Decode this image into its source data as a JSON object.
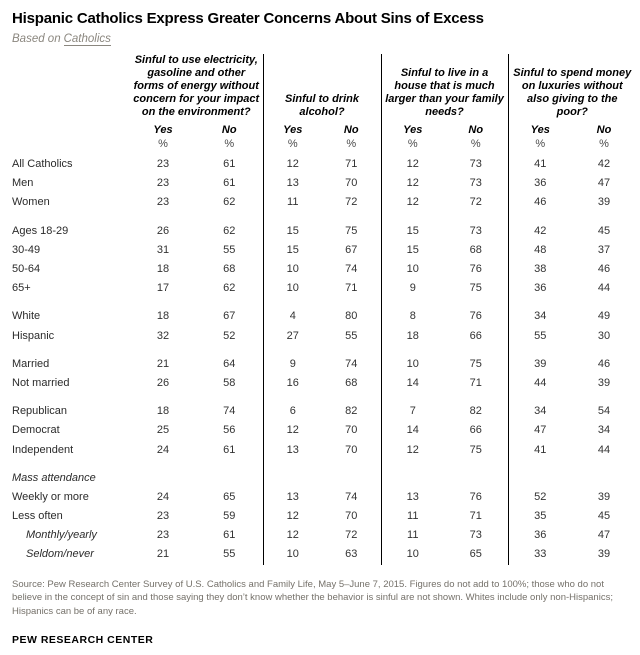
{
  "chart_data": {
    "type": "table",
    "title": "Hispanic Catholics Express Greater Concerns About Sins of Excess",
    "subtitle_prefix": "Based on",
    "subtitle_link": "Catholics",
    "columns": [
      "Yes",
      "No"
    ],
    "unit": "%",
    "column_groups": [
      {
        "question": "Sinful to use electricity, gasoline and other forms of energy without concern for your impact on the environment?"
      },
      {
        "question": "Sinful to drink alcohol?"
      },
      {
        "question": "Sinful to live in a house that is much larger than your family needs?"
      },
      {
        "question": "Sinful to spend money on luxuries without also giving to the poor?"
      }
    ],
    "rows": [
      {
        "label": "All Catholics",
        "values": [
          23,
          61,
          12,
          71,
          12,
          73,
          41,
          42
        ]
      },
      {
        "label": "Men",
        "values": [
          23,
          61,
          13,
          70,
          12,
          73,
          36,
          47
        ]
      },
      {
        "label": "Women",
        "values": [
          23,
          62,
          11,
          72,
          12,
          72,
          46,
          39
        ]
      },
      {
        "label": "Ages 18-29",
        "gap_before": true,
        "values": [
          26,
          62,
          15,
          75,
          15,
          73,
          42,
          45
        ]
      },
      {
        "label": "30-49",
        "values": [
          31,
          55,
          15,
          67,
          15,
          68,
          48,
          37
        ]
      },
      {
        "label": "50-64",
        "values": [
          18,
          68,
          10,
          74,
          10,
          76,
          38,
          46
        ]
      },
      {
        "label": "65+",
        "values": [
          17,
          62,
          10,
          71,
          9,
          75,
          36,
          44
        ]
      },
      {
        "label": "White",
        "gap_before": true,
        "values": [
          18,
          67,
          4,
          80,
          8,
          76,
          34,
          49
        ]
      },
      {
        "label": "Hispanic",
        "values": [
          32,
          52,
          27,
          55,
          18,
          66,
          55,
          30
        ]
      },
      {
        "label": "Married",
        "gap_before": true,
        "values": [
          21,
          64,
          9,
          74,
          10,
          75,
          39,
          46
        ]
      },
      {
        "label": "Not married",
        "values": [
          26,
          58,
          16,
          68,
          14,
          71,
          44,
          39
        ]
      },
      {
        "label": "Republican",
        "gap_before": true,
        "values": [
          18,
          74,
          6,
          82,
          7,
          82,
          34,
          54
        ]
      },
      {
        "label": "Democrat",
        "values": [
          25,
          56,
          12,
          70,
          14,
          66,
          47,
          34
        ]
      },
      {
        "label": "Independent",
        "values": [
          24,
          61,
          13,
          70,
          12,
          75,
          41,
          44
        ]
      },
      {
        "label": "Mass attendance",
        "gap_before": true,
        "section": true
      },
      {
        "label": "Weekly or more",
        "values": [
          24,
          65,
          13,
          74,
          13,
          76,
          52,
          39
        ]
      },
      {
        "label": "Less often",
        "values": [
          23,
          59,
          12,
          70,
          11,
          71,
          35,
          45
        ]
      },
      {
        "label": "Monthly/yearly",
        "italic": true,
        "indent": true,
        "values": [
          23,
          61,
          12,
          72,
          11,
          73,
          36,
          47
        ]
      },
      {
        "label": "Seldom/never",
        "italic": true,
        "indent": true,
        "values": [
          21,
          55,
          10,
          63,
          10,
          65,
          33,
          39
        ]
      }
    ]
  },
  "footer": {
    "source": "Source: Pew Research Center Survey of U.S. Catholics and Family Life, May 5–June 7, 2015. Figures do not add to 100%; those who do not believe in the concept of sin and those saying they don’t know whether the behavior is sinful are not shown. Whites include only non-Hispanics; Hispanics can be of any race.",
    "brand": "PEW RESEARCH CENTER"
  }
}
